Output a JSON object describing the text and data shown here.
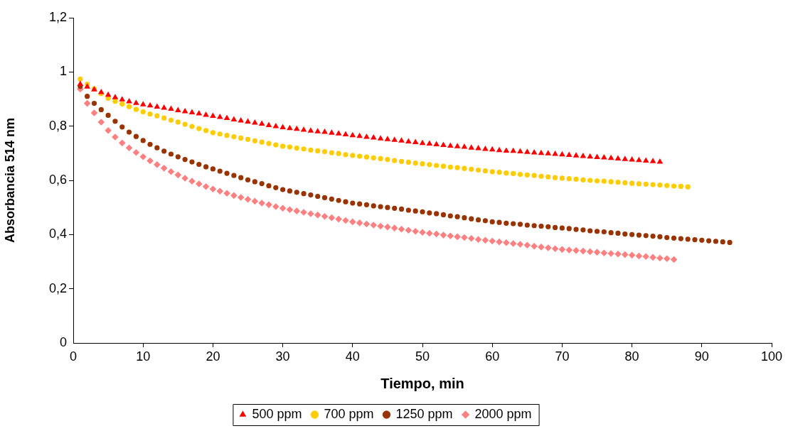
{
  "chart_data": {
    "type": "scatter",
    "xlabel": "Tiempo, min",
    "ylabel": "Absorbancia 514 nm",
    "legend": "bottom",
    "grid": false,
    "x": [
      1,
      2,
      3,
      4,
      5,
      6,
      7,
      8,
      9,
      10,
      11,
      12,
      13,
      14,
      15,
      16,
      17,
      18,
      19,
      20,
      21,
      22,
      23,
      24,
      25,
      26,
      27,
      28,
      29,
      30,
      31,
      32,
      33,
      34,
      35,
      36,
      37,
      38,
      39,
      40,
      41,
      42,
      43,
      44,
      45,
      46,
      47,
      48,
      49,
      50,
      51,
      52,
      53,
      54,
      55,
      56,
      57,
      58,
      59,
      60,
      61,
      62,
      63,
      64,
      65,
      66,
      67,
      68,
      69,
      70,
      71,
      72,
      73,
      74,
      75,
      76,
      77,
      78,
      79,
      80,
      81,
      82,
      83,
      84,
      85,
      86,
      87,
      88,
      89,
      90,
      91,
      92,
      93,
      94
    ],
    "xlim": [
      0,
      100
    ],
    "xticks": [
      0,
      10,
      20,
      30,
      40,
      50,
      60,
      70,
      80,
      90,
      100
    ],
    "ylim": [
      0,
      1.2
    ],
    "yticks": [
      0,
      {
        "value": 0.2,
        "label": "0,2"
      },
      {
        "value": 0.4,
        "label": "0,4"
      },
      {
        "value": 0.6,
        "label": "0,6"
      },
      {
        "value": 0.8,
        "label": "0,8"
      },
      1,
      {
        "value": 1.2,
        "label": "1,2"
      }
    ],
    "series": [
      {
        "name": "500 ppm",
        "color": "#ff0000",
        "marker": "triangle",
        "values": [
          0.955,
          0.945,
          0.935,
          0.925,
          0.915,
          0.906,
          0.898,
          0.891,
          0.885,
          0.88,
          0.876,
          0.871,
          0.867,
          0.863,
          0.858,
          0.854,
          0.85,
          0.846,
          0.841,
          0.837,
          0.833,
          0.829,
          0.824,
          0.82,
          0.816,
          0.812,
          0.808,
          0.803,
          0.799,
          0.795,
          0.792,
          0.789,
          0.786,
          0.783,
          0.78,
          0.778,
          0.775,
          0.772,
          0.769,
          0.766,
          0.763,
          0.76,
          0.757,
          0.754,
          0.751,
          0.749,
          0.746,
          0.743,
          0.74,
          0.737,
          0.735,
          0.732,
          0.73,
          0.727,
          0.725,
          0.723,
          0.72,
          0.718,
          0.715,
          0.713,
          0.711,
          0.709,
          0.708,
          0.706,
          0.704,
          0.702,
          0.7,
          0.699,
          0.697,
          0.695,
          0.693,
          0.691,
          0.689,
          0.687,
          0.685,
          0.684,
          0.682,
          0.68,
          0.678,
          0.676,
          0.674,
          0.672,
          0.67,
          0.668,
          null,
          null,
          null,
          null,
          null,
          null,
          null,
          null,
          null,
          null
        ]
      },
      {
        "name": "700 ppm",
        "color": "#ffcc00",
        "marker": "circle",
        "values": [
          0.974,
          0.955,
          0.938,
          0.92,
          0.903,
          0.892,
          0.882,
          0.872,
          0.862,
          0.853,
          0.845,
          0.838,
          0.83,
          0.822,
          0.815,
          0.807,
          0.799,
          0.791,
          0.784,
          0.776,
          0.771,
          0.766,
          0.761,
          0.756,
          0.751,
          0.746,
          0.741,
          0.736,
          0.731,
          0.726,
          0.723,
          0.719,
          0.716,
          0.712,
          0.709,
          0.706,
          0.702,
          0.699,
          0.695,
          0.692,
          0.689,
          0.686,
          0.683,
          0.68,
          0.677,
          0.673,
          0.67,
          0.667,
          0.664,
          0.661,
          0.658,
          0.655,
          0.652,
          0.649,
          0.647,
          0.644,
          0.641,
          0.638,
          0.635,
          0.632,
          0.63,
          0.627,
          0.625,
          0.622,
          0.62,
          0.618,
          0.615,
          0.613,
          0.61,
          0.608,
          0.606,
          0.604,
          0.602,
          0.6,
          0.598,
          0.597,
          0.595,
          0.593,
          0.591,
          0.589,
          0.587,
          0.586,
          0.584,
          0.583,
          0.581,
          0.579,
          0.578,
          0.576,
          null,
          null,
          null,
          null,
          null,
          null
        ]
      },
      {
        "name": "1250 ppm",
        "color": "#993300",
        "marker": "circle",
        "values": [
          0.947,
          0.91,
          0.884,
          0.861,
          0.84,
          0.818,
          0.797,
          0.778,
          0.762,
          0.747,
          0.733,
          0.72,
          0.708,
          0.697,
          0.687,
          0.677,
          0.668,
          0.659,
          0.65,
          0.642,
          0.634,
          0.626,
          0.618,
          0.61,
          0.602,
          0.595,
          0.588,
          0.58,
          0.573,
          0.566,
          0.561,
          0.556,
          0.551,
          0.546,
          0.541,
          0.536,
          0.531,
          0.526,
          0.521,
          0.516,
          0.513,
          0.51,
          0.506,
          0.503,
          0.5,
          0.497,
          0.494,
          0.49,
          0.487,
          0.484,
          0.48,
          0.477,
          0.473,
          0.469,
          0.466,
          0.462,
          0.458,
          0.454,
          0.451,
          0.447,
          0.445,
          0.442,
          0.44,
          0.438,
          0.435,
          0.433,
          0.431,
          0.429,
          0.426,
          0.424,
          0.422,
          0.419,
          0.417,
          0.414,
          0.412,
          0.41,
          0.407,
          0.405,
          0.402,
          0.4,
          0.398,
          0.396,
          0.394,
          0.392,
          0.389,
          0.387,
          0.385,
          0.383,
          0.381,
          0.379,
          0.377,
          0.375,
          0.373,
          0.371
        ]
      },
      {
        "name": "2000 ppm",
        "color": "#ff8080",
        "marker": "diamond",
        "values": [
          0.937,
          0.884,
          0.849,
          0.815,
          0.784,
          0.76,
          0.738,
          0.72,
          0.703,
          0.687,
          0.672,
          0.658,
          0.645,
          0.632,
          0.62,
          0.608,
          0.597,
          0.587,
          0.577,
          0.568,
          0.56,
          0.552,
          0.544,
          0.537,
          0.53,
          0.523,
          0.516,
          0.51,
          0.503,
          0.497,
          0.492,
          0.487,
          0.482,
          0.477,
          0.472,
          0.467,
          0.462,
          0.457,
          0.452,
          0.447,
          0.443,
          0.439,
          0.435,
          0.431,
          0.428,
          0.424,
          0.42,
          0.416,
          0.412,
          0.408,
          0.405,
          0.402,
          0.398,
          0.395,
          0.392,
          0.389,
          0.386,
          0.382,
          0.379,
          0.376,
          0.373,
          0.37,
          0.367,
          0.364,
          0.361,
          0.357,
          0.354,
          0.351,
          0.348,
          0.345,
          0.343,
          0.341,
          0.339,
          0.337,
          0.335,
          0.332,
          0.33,
          0.328,
          0.326,
          0.324,
          0.321,
          0.319,
          0.316,
          0.313,
          0.311,
          0.308,
          null,
          null,
          null,
          null,
          null,
          null,
          null,
          null
        ]
      }
    ]
  }
}
